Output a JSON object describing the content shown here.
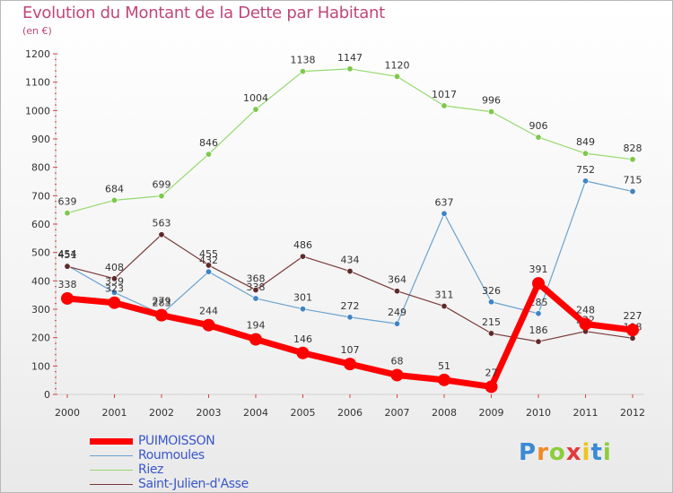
{
  "chart_data": {
    "type": "line",
    "title": "Evolution du Montant de la Dette par Habitant",
    "subtitle": "(en €)",
    "xlabel": "",
    "ylabel": "",
    "categories": [
      "2000",
      "2001",
      "2002",
      "2003",
      "2004",
      "2005",
      "2006",
      "2007",
      "2008",
      "2009",
      "2010",
      "2011",
      "2012"
    ],
    "ylim": [
      0,
      1200
    ],
    "yticks": [
      0,
      100,
      200,
      300,
      400,
      500,
      600,
      700,
      800,
      900,
      1000,
      1100,
      1200
    ],
    "grid": false,
    "legend_position": "bottom-left",
    "series": [
      {
        "name": "PUIMOISSON",
        "color": "#ff0000",
        "emphasis": true,
        "values": [
          338,
          323,
          279,
          244,
          194,
          146,
          107,
          68,
          51,
          27,
          391,
          248,
          227
        ]
      },
      {
        "name": "Roumoules",
        "color": "#6ba3cf",
        "marker_color": "#3f84c4",
        "values": [
          454,
          359,
          283,
          432,
          338,
          301,
          272,
          249,
          637,
          326,
          285,
          752,
          715
        ]
      },
      {
        "name": "Riez",
        "color": "#95d96e",
        "marker_color": "#7ec84c",
        "values": [
          639,
          684,
          699,
          846,
          1004,
          1138,
          1147,
          1120,
          1017,
          996,
          906,
          849,
          828
        ]
      },
      {
        "name": "Saint-Julien-d'Asse",
        "color": "#7a3a3a",
        "marker_color": "#5e2a2a",
        "values": [
          451,
          408,
          563,
          455,
          368,
          486,
          434,
          364,
          311,
          215,
          186,
          222,
          198
        ]
      }
    ]
  },
  "logo": {
    "text": "Proxiti",
    "letters": [
      "P",
      "r",
      "o",
      "x",
      "i",
      "t",
      "i"
    ],
    "colors": [
      "#3a8ad6",
      "#f08a24",
      "#8ccd3a",
      "#e23b3b",
      "#f0c419",
      "#3a8ad6",
      "#8ccd3a"
    ]
  }
}
